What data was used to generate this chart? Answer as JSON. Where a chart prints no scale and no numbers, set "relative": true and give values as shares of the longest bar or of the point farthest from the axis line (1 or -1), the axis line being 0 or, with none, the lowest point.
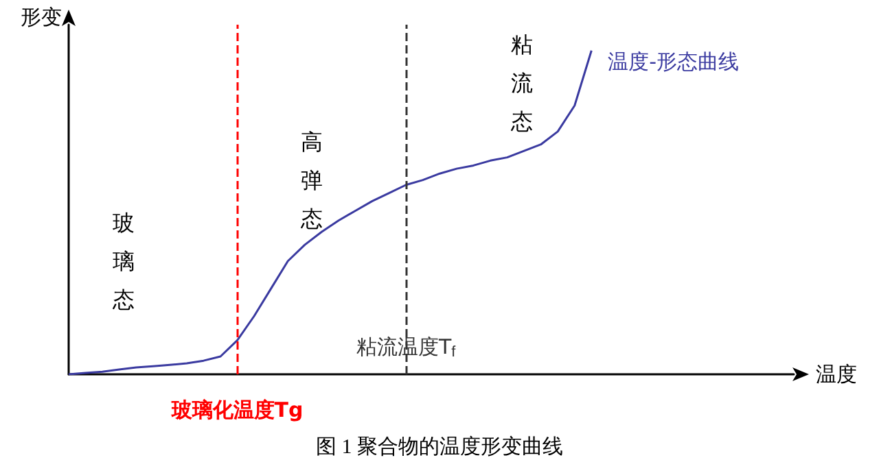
{
  "chart_data": {
    "type": "line",
    "title": "图 1 聚合物的温度形变曲线",
    "xlabel": "温度",
    "ylabel": "形变",
    "relative": true,
    "grid": false,
    "categories": [
      null,
      null,
      null,
      null,
      null,
      null,
      null,
      null,
      null,
      null,
      null,
      null,
      null,
      null,
      null,
      null,
      null,
      null,
      null,
      null,
      null,
      null,
      null,
      null,
      null,
      null,
      null,
      null,
      null,
      null,
      null,
      null,
      null,
      null,
      null,
      null,
      null,
      null,
      null,
      null,
      null,
      null,
      null,
      null
    ],
    "series": [
      {
        "name": "温度-形态曲线",
        "color": "#3a3aa0",
        "values": [
          0,
          0.004,
          0.008,
          0.015,
          0.021,
          0.025,
          0.029,
          0.034,
          0.042,
          0.055,
          0.105,
          0.18,
          0.265,
          0.35,
          0.4,
          0.44,
          0.475,
          0.505,
          0.535,
          0.56,
          0.585,
          0.6,
          0.62,
          0.635,
          0.645,
          0.66,
          0.67,
          0.69,
          0.71,
          0.75,
          0.83,
          1,
          null,
          null,
          null,
          null,
          null,
          null,
          null,
          null,
          null,
          null,
          null,
          null
        ]
      }
    ],
    "annotations": [
      "玻璃态",
      "高弹态",
      "粘流态",
      "玻璃化温度Tg",
      "粘流温度T$_{f}$"
    ]
  }
}
